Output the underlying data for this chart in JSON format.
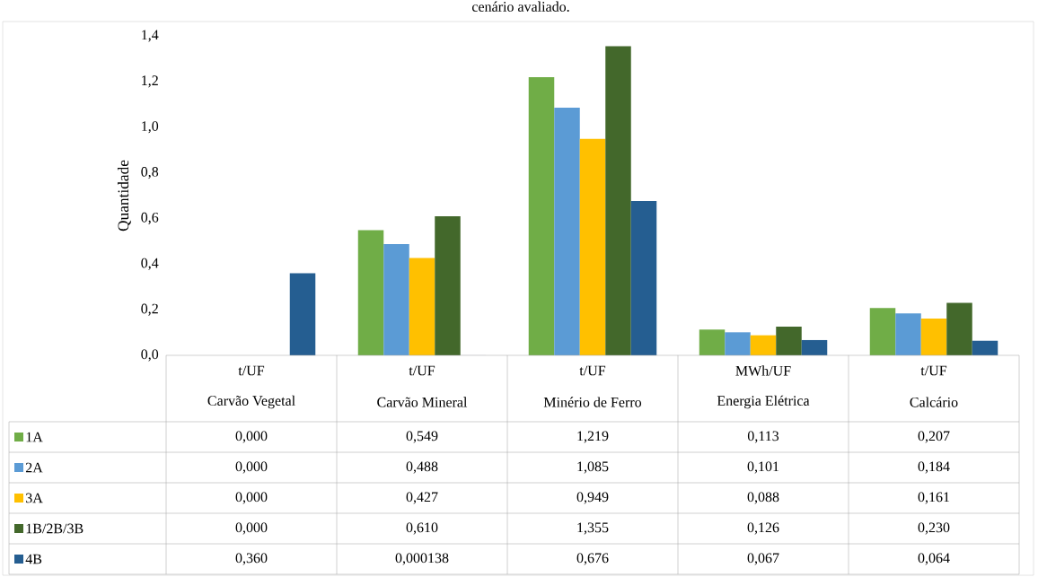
{
  "chart_data": {
    "type": "bar",
    "title": "cenário avaliado.",
    "ylabel": "Quantidade",
    "categories": [
      "Carvão Vegetal",
      "Carvão Mineral",
      "Minério de Ferro",
      "Energia Elétrica",
      "Calcário"
    ],
    "annotations": [
      "t/UF",
      "t/UF",
      "t/UF",
      "MWh/UF",
      "t/UF"
    ],
    "ylim": [
      0,
      1.4
    ],
    "legend": "bottom left",
    "yticks": [
      {
        "value": 0,
        "label": "0,0"
      },
      {
        "value": 0.2,
        "label": "0,2"
      },
      {
        "value": 0.4,
        "label": "0,4"
      },
      {
        "value": 0.6,
        "label": "0,6"
      },
      {
        "value": 0.8,
        "label": "0,8"
      },
      {
        "value": 1.0,
        "label": "1,0"
      },
      {
        "value": 1.2,
        "label": "1,2"
      },
      {
        "value": 1.4,
        "label": "1,4"
      }
    ],
    "series": [
      {
        "name": "1A",
        "color": "#70ad47",
        "values": [
          0.0,
          0.549,
          1.219,
          0.113,
          0.207
        ],
        "value_labels": [
          "0,000",
          "0,549",
          "1,219",
          "0,113",
          "0,207"
        ]
      },
      {
        "name": "2A",
        "color": "#5b9bd5",
        "values": [
          0.0,
          0.488,
          1.085,
          0.101,
          0.184
        ],
        "value_labels": [
          "0,000",
          "0,488",
          "1,085",
          "0,101",
          "0,184"
        ]
      },
      {
        "name": "3A",
        "color": "#ffc000",
        "values": [
          0.0,
          0.427,
          0.949,
          0.088,
          0.161
        ],
        "value_labels": [
          "0,000",
          "0,427",
          "0,949",
          "0,088",
          "0,161"
        ]
      },
      {
        "name": "1B/2B/3B",
        "color": "#43682b",
        "values": [
          0.0,
          0.61,
          1.355,
          0.126,
          0.23
        ],
        "value_labels": [
          "0,000",
          "0,610",
          "1,355",
          "0,126",
          "0,230"
        ]
      },
      {
        "name": "4B",
        "color": "#255e91",
        "values": [
          0.36,
          0.000138,
          0.676,
          0.067,
          0.064
        ],
        "value_labels": [
          "0,360",
          "0,000138",
          "0,676",
          "0,067",
          "0,064"
        ]
      }
    ]
  }
}
